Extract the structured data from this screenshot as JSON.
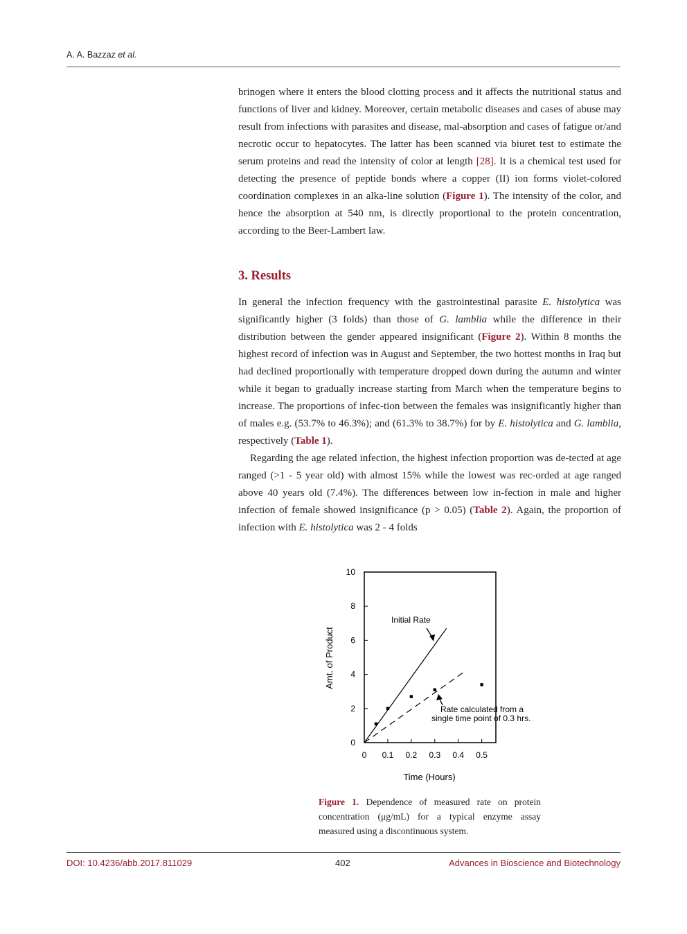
{
  "header": {
    "authors": "A. A. Bazzaz",
    "etal": "et al."
  },
  "intro": {
    "p1_a": "brinogen where it enters the blood clotting process and it affects the nutritional status and functions of liver and kidney. Moreover, certain metabolic diseases and cases of abuse may result from infections with parasites and disease, mal-absorption and cases of fatigue or/and necrotic occur to hepatocytes. The latter has been scanned via biuret test to estimate the serum proteins and read the intensity of color at length ",
    "p1_ref": "[28]",
    "p1_b": ". It is a chemical test used for detecting the presence of peptide bonds where a copper (II) ion forms violet-colored coordination complexes in an alka-line solution (",
    "p1_fig": "Figure 1",
    "p1_c": "). The intensity of the color, and hence the absorption at 540 nm, is directly proportional to the protein concentration, according to the Beer-Lambert law."
  },
  "results": {
    "title": "3. Results",
    "p2_a": "In general the infection frequency with the gastrointestinal parasite ",
    "p2_eh": "E. histolytica",
    "p2_b": " was significantly higher (3 folds) than those of ",
    "p2_gl": "G. lamblia",
    "p2_c": " while the difference in their distribution between the gender appeared insignificant (",
    "p2_fig": "Figure 2",
    "p2_d": "). Within 8 months the highest record of infection was in August and September, the two hottest months in Iraq but had declined proportionally with temperature dropped down during the autumn and winter while it began to gradually increase starting from March when the temperature begins to increase. The proportions of infec-tion between the females was insignificantly higher than of males e.g. (53.7% to 46.3%); and (61.3% to 38.7%) for by ",
    "p2_eh2": "E. histolytica",
    "p2_e": " and ",
    "p2_gl2": "G. lamblia",
    "p2_f": ", respectively (",
    "p2_tab": "Table 1",
    "p2_g": ").",
    "p3_a": "Regarding the age related infection, the highest infection proportion was de-tected at age ranged (>1 - 5 year old) with almost 15% while the lowest was rec-orded at age ranged above 40 years old (7.4%). The differences between low in-fection in male and higher infection of female showed insignificance (p > 0.05) (",
    "p3_tab": "Table 2",
    "p3_b": "). Again, the proportion of infection with ",
    "p3_eh": "E. histolytica",
    "p3_c": " was 2 - 4 folds"
  },
  "chart_data": {
    "type": "scatter",
    "xlabel": "Time (Hours)",
    "ylabel": "Amt. of Product",
    "xlim": [
      0,
      0.56
    ],
    "ylim": [
      0,
      10
    ],
    "x_ticks": [
      "0",
      "0.1",
      "0.2",
      "0.3",
      "0.4",
      "0.5"
    ],
    "y_ticks": [
      "0",
      "2",
      "4",
      "6",
      "8",
      "10"
    ],
    "points": [
      {
        "x": 0.05,
        "y": 1.1
      },
      {
        "x": 0.1,
        "y": 2.0
      },
      {
        "x": 0.2,
        "y": 2.7
      },
      {
        "x": 0.3,
        "y": 3.1
      },
      {
        "x": 0.5,
        "y": 3.4
      }
    ],
    "lines": [
      {
        "style": "solid",
        "x": [
          0,
          0.35
        ],
        "y": [
          0,
          6.7
        ]
      },
      {
        "style": "dashed",
        "x": [
          0,
          0.42
        ],
        "y": [
          0,
          4.1
        ]
      }
    ],
    "annotations": [
      {
        "text_lines": [
          "Initial Rate"
        ]
      },
      {
        "text_lines": [
          "Rate calculated from a",
          "single time point of 0.3 hrs."
        ]
      }
    ],
    "grid": false
  },
  "caption": {
    "label": "Figure 1.",
    "text": " Dependence of measured rate on protein concentration (μg/mL) for a typical enzyme assay measured using a discontinuous system."
  },
  "footer": {
    "doi": "DOI: 10.4236/abb.2017.811029",
    "page": "402",
    "journal": "Advances in Bioscience and Biotechnology"
  }
}
